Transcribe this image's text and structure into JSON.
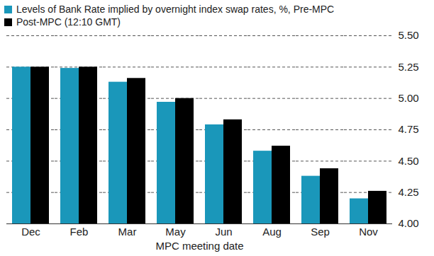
{
  "chart_data": {
    "type": "bar",
    "x_label": "MPC meeting date",
    "categories": [
      "Dec",
      "Feb",
      "Mar",
      "May",
      "Jun",
      "Aug",
      "Sep",
      "Nov"
    ],
    "series": [
      {
        "name": "Levels of Bank Rate implied by overnight index swap rates, %, Pre-MPC",
        "color": "#1a97ba",
        "values": [
          5.25,
          5.24,
          5.13,
          4.97,
          4.79,
          4.58,
          4.38,
          4.2
        ]
      },
      {
        "name": "Post-MPC (12:10 GMT)",
        "color": "#000000",
        "values": [
          5.25,
          5.25,
          5.16,
          5.0,
          4.83,
          4.62,
          4.44,
          4.26
        ]
      }
    ],
    "ylim": [
      4.0,
      5.5
    ],
    "yticks": [
      {
        "value": 4.0,
        "label": "4.00"
      },
      {
        "value": 4.25,
        "label": "4.25"
      },
      {
        "value": 4.5,
        "label": "4.50"
      },
      {
        "value": 4.75,
        "label": "4.75"
      },
      {
        "value": 5.0,
        "label": "5.00"
      },
      {
        "value": 5.25,
        "label": "5.25"
      },
      {
        "value": 5.5,
        "label": "5.50"
      }
    ],
    "grid": true,
    "legend": "top-left"
  }
}
